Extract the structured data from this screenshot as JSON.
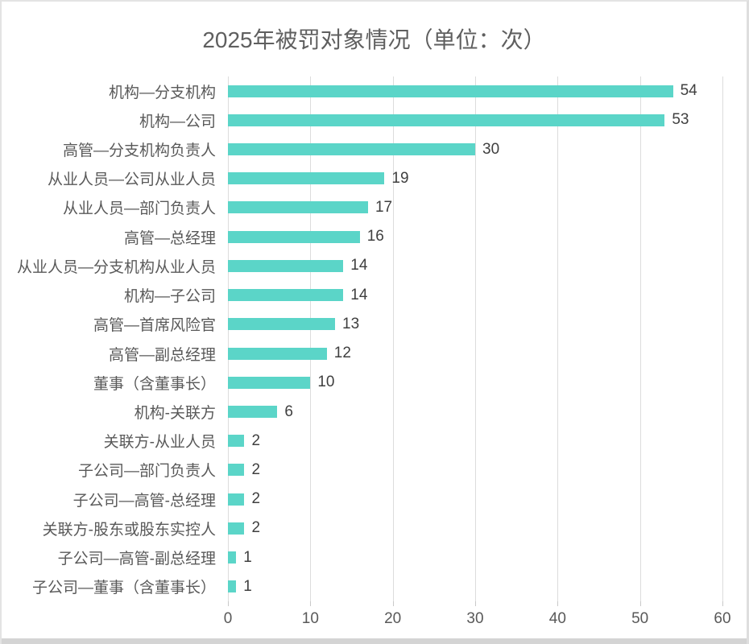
{
  "chart_data": {
    "type": "bar",
    "orientation": "horizontal",
    "title": "2025年被罚对象情况（单位：次）",
    "categories": [
      "机构—分支机构",
      "机构—公司",
      "高管—分支机构负责人",
      "从业人员—公司从业人员",
      "从业人员—部门负责人",
      "高管—总经理",
      "从业人员—分支机构从业人员",
      "机构—子公司",
      "高管—首席风险官",
      "高管—副总经理",
      "董事（含董事长）",
      "机构-关联方",
      "关联方-从业人员",
      "子公司—部门负责人",
      "子公司—高管-总经理",
      "关联方-股东或股东实控人",
      "子公司—高管-副总经理",
      "子公司—董事（含董事长）"
    ],
    "values": [
      54,
      53,
      30,
      19,
      17,
      16,
      14,
      14,
      13,
      12,
      10,
      6,
      2,
      2,
      2,
      2,
      1,
      1
    ],
    "xlabel": "",
    "ylabel": "",
    "xlim": [
      0,
      60
    ],
    "x_ticks": [
      0,
      10,
      20,
      30,
      40,
      50,
      60
    ],
    "grid": "vertical",
    "legend_position": "none",
    "data_labels": "outside-end"
  },
  "colors": {
    "bar": "#5bd5c8",
    "gridline": "#dcdcdc",
    "title_text": "#5f5f5f",
    "category_text": "#595959",
    "value_text": "#3f3f3f",
    "axis_text": "#595959",
    "card_border": "#e3e3e3",
    "bottom_border": "#d4d4d4"
  }
}
